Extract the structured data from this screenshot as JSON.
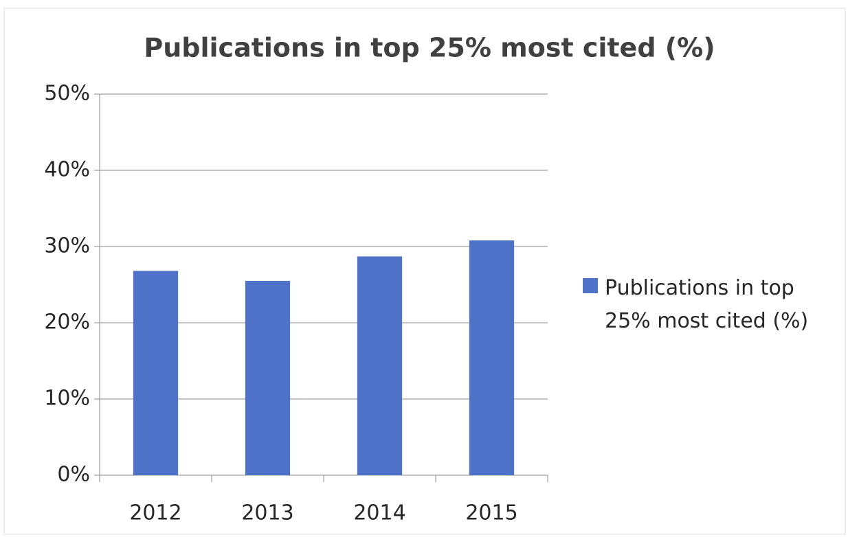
{
  "chart_data": {
    "type": "bar",
    "title": "Publications in top 25% most cited (%)",
    "categories": [
      "2012",
      "2013",
      "2014",
      "2015"
    ],
    "series": [
      {
        "name": "Publications in top 25% most cited (%)",
        "color": "#4f72c9",
        "values": [
          26.8,
          25.5,
          28.7,
          30.8
        ]
      }
    ],
    "ylim": [
      0,
      50
    ],
    "yticks": [
      {
        "value": 0,
        "label": "0%"
      },
      {
        "value": 10,
        "label": "10%"
      },
      {
        "value": 20,
        "label": "20%"
      },
      {
        "value": 30,
        "label": "30%"
      },
      {
        "value": 40,
        "label": "40%"
      },
      {
        "value": 50,
        "label": "50%"
      }
    ],
    "grid": true,
    "legend": "right"
  }
}
